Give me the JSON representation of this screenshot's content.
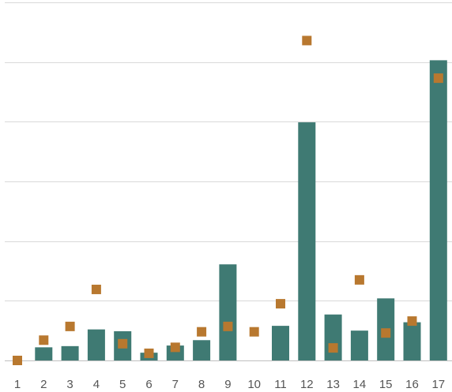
{
  "colors": {
    "background": "#ffffff",
    "bar": "#3f7a73",
    "marker": "#b8782f",
    "grid": "#d9d9d9",
    "tick_text": "#555555"
  },
  "chart_data": {
    "type": "bar",
    "title": "",
    "xlabel": "",
    "ylabel": "",
    "categories": [
      "1",
      "2",
      "3",
      "4",
      "5",
      "6",
      "7",
      "8",
      "9",
      "10",
      "11",
      "12",
      "13",
      "14",
      "15",
      "16",
      "17"
    ],
    "ylim": [
      0,
      6
    ],
    "grid": true,
    "y_tick_labels_shown": false,
    "series": [
      {
        "kind": "bar",
        "values": [
          0,
          0.22,
          0.24,
          0.52,
          0.49,
          0.13,
          0.25,
          0.34,
          1.61,
          0,
          0.58,
          3.99,
          0.77,
          0.5,
          1.04,
          0.64,
          5.03
        ]
      },
      {
        "kind": "marker",
        "values": [
          0,
          0.34,
          0.57,
          1.19,
          0.28,
          0.12,
          0.22,
          0.48,
          0.57,
          0.48,
          0.95,
          5.36,
          0.21,
          1.35,
          0.46,
          0.66,
          4.73
        ]
      }
    ]
  }
}
